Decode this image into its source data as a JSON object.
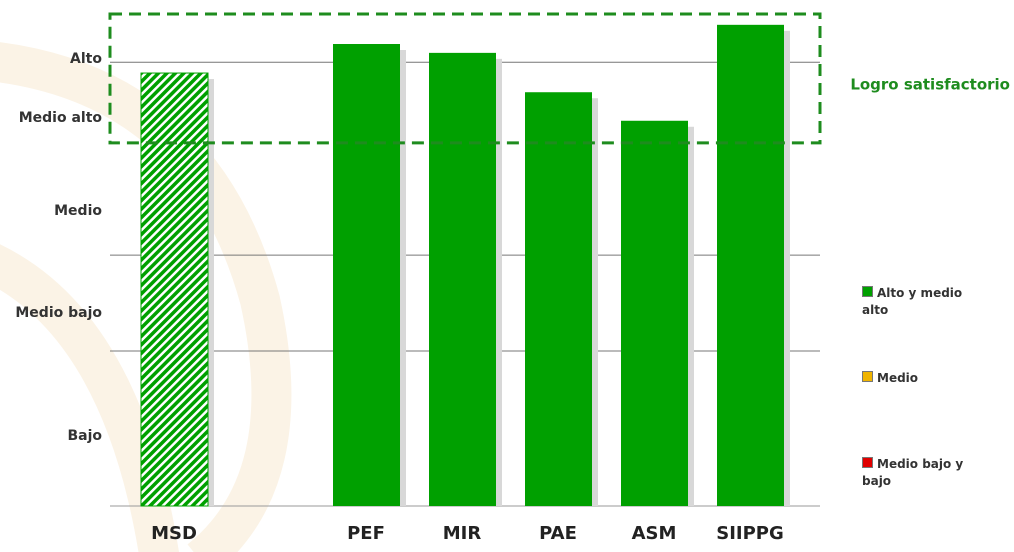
{
  "chart_data": {
    "type": "bar",
    "categories": [
      "MSD",
      null,
      "PEF",
      "MIR",
      "PAE",
      "ASM",
      "SIIPPG"
    ],
    "values": [
      88,
      null,
      93.9,
      92.1,
      84.1,
      78.3,
      97.8
    ],
    "color": "#00a000",
    "hatch": [
      true,
      null,
      false,
      false,
      false,
      false,
      false
    ],
    "ylim": [
      0,
      100
    ],
    "yticks": [
      {
        "value": 14.2,
        "label": "Bajo"
      },
      {
        "value": 39.2,
        "label": "Medio bajo"
      },
      {
        "value": 60,
        "label": "Medio"
      },
      {
        "value": 78.9,
        "label": "Medio  alto"
      },
      {
        "value": 90.9,
        "label": "Alto"
      }
    ],
    "grid_lines": [
      0,
      31.5,
      51,
      90.2
    ],
    "target_band": {
      "range": [
        73.8,
        100
      ],
      "label": "Logro satisfactorio",
      "color": "#1e8c1e"
    },
    "legend": [
      {
        "name": "Alto y medio alto",
        "color": "#00a000"
      },
      {
        "name": "Medio",
        "color": "#f0b400"
      },
      {
        "name": "Medio bajo y bajo",
        "color": "#e00000"
      }
    ]
  }
}
